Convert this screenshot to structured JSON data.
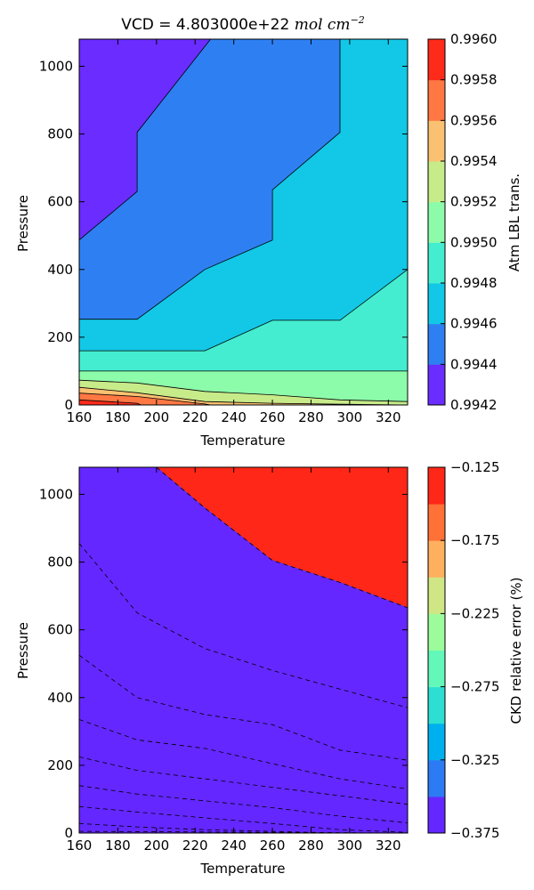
{
  "chart_data": [
    {
      "type": "contour",
      "title_prefix": "VCD = 4.803000e+22 ",
      "title_unit": "mol cm",
      "title_exponent": "−2",
      "xlabel": "Temperature",
      "ylabel": "Pressure",
      "xlim": [
        160,
        330
      ],
      "ylim": [
        0,
        1080
      ],
      "x_ticks": [
        "160",
        "180",
        "200",
        "220",
        "240",
        "260",
        "280",
        "300",
        "320"
      ],
      "y_ticks": [
        "0",
        "200",
        "400",
        "600",
        "800",
        "1000"
      ],
      "colorbar_label": "Atm LBL trans.",
      "colorbar_ticks": [
        "0.9942",
        "0.9944",
        "0.9946",
        "0.9948",
        "0.9950",
        "0.9952",
        "0.9954",
        "0.9956",
        "0.9958",
        "0.9960"
      ],
      "levels": [
        0.9942,
        0.9944,
        0.9946,
        0.9948,
        0.995,
        0.9952,
        0.9954,
        0.9956,
        0.9958,
        0.996
      ],
      "level_colors": [
        "#6a2cff",
        "#2e80f2",
        "#12c8e6",
        "#44edcf",
        "#8cfcaa",
        "#c8eb8a",
        "#f9c171",
        "#ff7843",
        "#fe2a1a"
      ],
      "contour_lines": "solid",
      "boundaries": [
        {
          "x": [
            160,
            190,
            190,
            228,
            330
          ],
          "y": [
            487,
            630,
            805,
            1080,
            1080
          ]
        },
        {
          "x": [
            160,
            190,
            225,
            260,
            260,
            295,
            295,
            330
          ],
          "y": [
            253,
            253,
            400,
            487,
            635,
            805,
            1080,
            1080
          ]
        },
        {
          "x": [
            160,
            225,
            260,
            295,
            330
          ],
          "y": [
            160,
            160,
            250,
            250,
            400
          ]
        },
        {
          "x": [
            160,
            330,
            330
          ],
          "y": [
            100,
            100,
            160
          ]
        },
        {
          "x": [
            160,
            190,
            225,
            260,
            295,
            330
          ],
          "y": [
            73,
            65,
            40,
            30,
            15,
            10
          ]
        },
        {
          "x": [
            160,
            190,
            225,
            260,
            295,
            330
          ],
          "y": [
            52,
            36,
            10,
            5,
            2,
            0
          ]
        },
        {
          "x": [
            160,
            190,
            225,
            228
          ],
          "y": [
            35,
            25,
            3,
            0
          ]
        },
        {
          "x": [
            160,
            190,
            192
          ],
          "y": [
            15,
            5,
            0
          ]
        }
      ]
    },
    {
      "type": "contour",
      "xlabel": "Temperature",
      "ylabel": "Pressure",
      "xlim": [
        160,
        330
      ],
      "ylim": [
        0,
        1080
      ],
      "x_ticks": [
        "160",
        "180",
        "200",
        "220",
        "240",
        "260",
        "280",
        "300",
        "320"
      ],
      "y_ticks": [
        "0",
        "200",
        "400",
        "600",
        "800",
        "1000"
      ],
      "colorbar_label": "CKD relative error (%)",
      "colorbar_ticks": [
        "−0.125",
        "−0.175",
        "−0.225",
        "−0.275",
        "−0.325",
        "−0.375"
      ],
      "colorbar_tick_values": [
        -0.125,
        -0.175,
        -0.225,
        -0.275,
        -0.325,
        -0.375
      ],
      "levels": [
        -0.375,
        -0.35,
        -0.325,
        -0.3,
        -0.275,
        -0.25,
        -0.225,
        -0.2,
        -0.175,
        -0.15,
        -0.125
      ],
      "level_colors": [
        "#6427ff",
        "#2c7af4",
        "#00b0ee",
        "#2ddfd2",
        "#63f8b9",
        "#9cfc9b",
        "#d0e684",
        "#ffb05f",
        "#ff7137",
        "#ff2718"
      ],
      "contour_lines": "dashed",
      "boundaries": [
        {
          "x": [
            160,
            330
          ],
          "y": [
            5,
            0
          ]
        },
        {
          "x": [
            160,
            190,
            225,
            260,
            295,
            330
          ],
          "y": [
            28,
            18,
            10,
            5,
            0,
            0
          ]
        },
        {
          "x": [
            160,
            190,
            225,
            260,
            295,
            330
          ],
          "y": [
            78,
            62,
            45,
            28,
            10,
            2
          ]
        },
        {
          "x": [
            160,
            190,
            225,
            260,
            295,
            330
          ],
          "y": [
            140,
            115,
            95,
            75,
            50,
            30
          ]
        },
        {
          "x": [
            160,
            190,
            225,
            260,
            295,
            330
          ],
          "y": [
            225,
            185,
            160,
            135,
            110,
            85
          ]
        },
        {
          "x": [
            160,
            190,
            225,
            260,
            295,
            330
          ],
          "y": [
            335,
            275,
            250,
            205,
            160,
            130
          ]
        },
        {
          "x": [
            160,
            190,
            225,
            260,
            295,
            330
          ],
          "y": [
            525,
            400,
            350,
            320,
            245,
            215
          ]
        },
        {
          "x": [
            160,
            190,
            225,
            260,
            295,
            330
          ],
          "y": [
            855,
            650,
            545,
            480,
            425,
            370
          ]
        },
        {
          "x": [
            200,
            225,
            260,
            295,
            330,
            330
          ],
          "y": [
            1080,
            960,
            805,
            740,
            665,
            1080
          ]
        }
      ]
    }
  ]
}
